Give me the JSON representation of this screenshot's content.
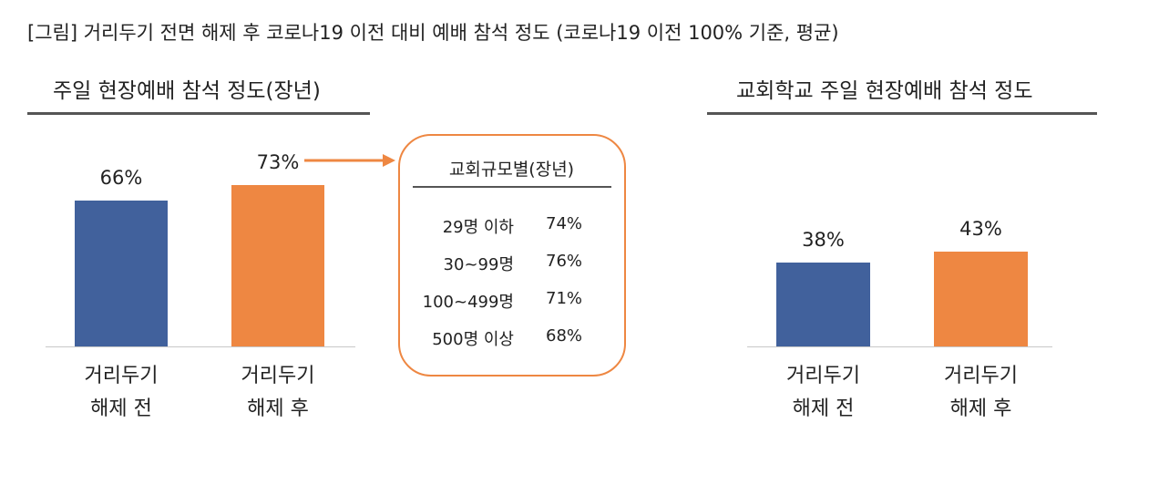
{
  "figure_title": "[그림] 거리두기 전면 해제 후 코로나19 이전 대비 예배 참석 정도 (코로나19 이전 100% 기준, 평균)",
  "colors": {
    "before": "#41619c",
    "after": "#ee8742",
    "callout_border": "#ee8742"
  },
  "chart_data": [
    {
      "type": "bar",
      "title": "주일 현장예배 참석 정도(장년)",
      "categories": [
        "거리두기\n해제 전",
        "거리두기\n해제 후"
      ],
      "category_lines": [
        [
          "거리두기",
          "해제 전"
        ],
        [
          "거리두기",
          "해제 후"
        ]
      ],
      "values": [
        66,
        73
      ],
      "data_labels": [
        "66%",
        "73%"
      ],
      "ylim": [
        0,
        100
      ],
      "grid": false
    },
    {
      "type": "table",
      "title": "교회규모별(장년)",
      "rows": [
        {
          "category": "29명 이하",
          "value": "74%"
        },
        {
          "category": "30~99명",
          "value": "76%"
        },
        {
          "category": "100~499명",
          "value": "71%"
        },
        {
          "category": "500명 이상",
          "value": "68%"
        }
      ]
    },
    {
      "type": "bar",
      "title": "교회학교 주일 현장예배 참석 정도",
      "categories": [
        "거리두기\n해제 전",
        "거리두기\n해제 후"
      ],
      "category_lines": [
        [
          "거리두기",
          "해제 전"
        ],
        [
          "거리두기",
          "해제 후"
        ]
      ],
      "values": [
        38,
        43
      ],
      "data_labels": [
        "38%",
        "43%"
      ],
      "ylim": [
        0,
        100
      ],
      "grid": false
    }
  ]
}
